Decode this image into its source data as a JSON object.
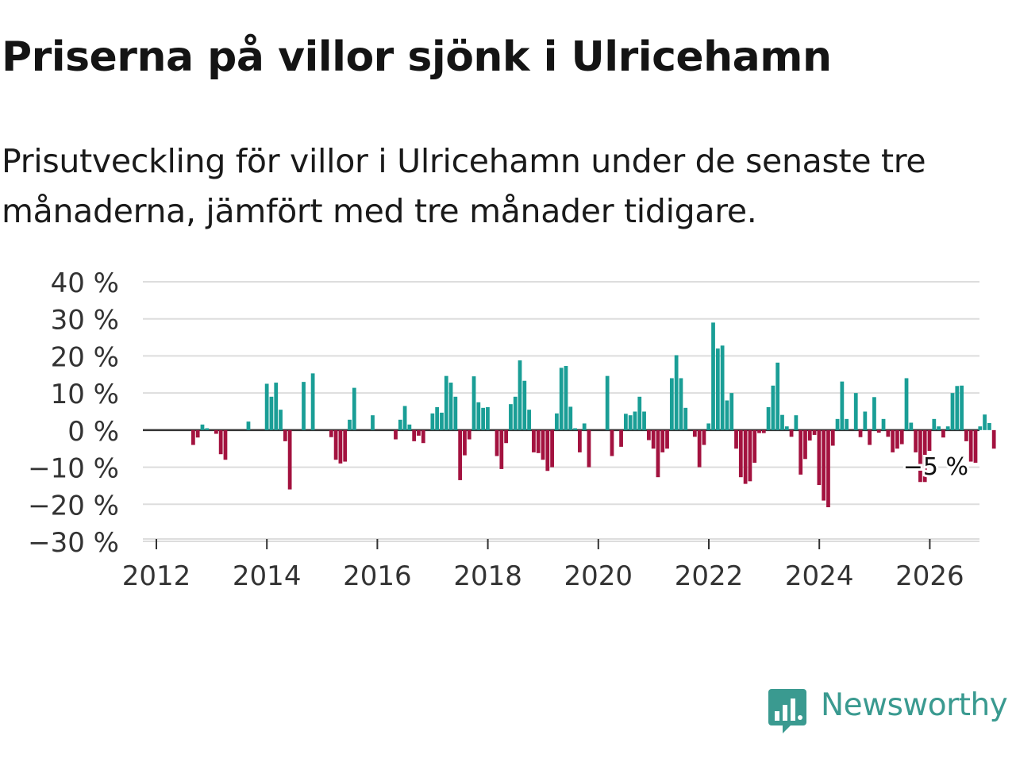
{
  "title": "Priserna på villor sjönk i Ulricehamn",
  "subtitle": "Prisutveckling för villor i Ulricehamn under de senaste tre månaderna, jämfört med tre månader tidigare.",
  "brand": "Newsworthy",
  "colors": {
    "positive": "#1a9e96",
    "negative": "#a3123f",
    "grid": "#dddddd",
    "zero": "#333333",
    "brand": "#3a9a90"
  },
  "chart_data": {
    "type": "bar",
    "title": "Priserna på villor sjönk i Ulricehamn",
    "xlabel": "",
    "ylabel": "",
    "ylim": [
      -30,
      40
    ],
    "yticks": [
      -30,
      -20,
      -10,
      0,
      10,
      20,
      30,
      40
    ],
    "ytick_labels": [
      "−30 %",
      "−20 %",
      "−10 %",
      "0 %",
      "10 %",
      "20 %",
      "30 %",
      "40 %"
    ],
    "xlim": [
      2012,
      2027
    ],
    "xticks": [
      2012,
      2014,
      2016,
      2018,
      2020,
      2022,
      2024,
      2026
    ],
    "xtick_labels": [
      "2012",
      "2014",
      "2016",
      "2018",
      "2020",
      "2022",
      "2024",
      "2026"
    ],
    "start": 2012.0,
    "step": 0.0833,
    "values": [
      0,
      0,
      0,
      0,
      0,
      0,
      0,
      0,
      -4,
      -2,
      1.5,
      0.5,
      0,
      -1,
      -6.5,
      -8,
      0,
      0,
      0,
      0,
      2.3,
      0,
      0,
      0,
      12.5,
      9,
      12.8,
      5.5,
      -3,
      -16,
      0,
      0,
      13,
      0,
      15.3,
      0,
      0,
      0,
      -1.9,
      -8,
      -9,
      -8.5,
      2.8,
      11.4,
      0,
      0,
      0,
      4,
      0,
      0,
      0,
      0,
      -2.5,
      2.8,
      6.5,
      1.5,
      -3,
      -1.5,
      -3.5,
      0,
      4.5,
      6.2,
      4.7,
      14.6,
      12.8,
      9,
      -13.5,
      -6.8,
      -2.5,
      14.5,
      7.5,
      6,
      6.2,
      0,
      -7,
      -10.5,
      -3.5,
      7,
      9,
      18.8,
      13.3,
      5.5,
      -6,
      -6.2,
      -8,
      -11,
      -10,
      4.5,
      16.8,
      17.3,
      6.3,
      0.5,
      -6,
      1.8,
      -10,
      0,
      0,
      0,
      14.6,
      -7,
      0,
      -4.5,
      4.4,
      4,
      5,
      9,
      5,
      -2.7,
      -5,
      -12.7,
      -6,
      -5,
      14,
      20.2,
      14,
      6,
      0,
      -1.8,
      -10,
      -4,
      1.8,
      29,
      22,
      22.8,
      8,
      10,
      -5,
      -12.7,
      -14.5,
      -13.8,
      -8.8,
      -0.8,
      -0.8,
      6.2,
      12,
      18.2,
      4.1,
      1,
      -1.8,
      4,
      -12,
      -7.8,
      -2.8,
      -1.3,
      -14.8,
      -19,
      -20.8,
      -4.2,
      3,
      13.1,
      3,
      0,
      10,
      -1.9,
      5,
      -4,
      8.9,
      -0.7,
      3,
      -1.8,
      -6,
      -5,
      -3.8,
      14,
      2,
      -6,
      -14,
      -14,
      -5.6,
      3,
      1,
      -2,
      1,
      10,
      11.9,
      12,
      -3,
      -8.5,
      -8.8,
      1,
      4.2,
      1.9,
      -5,
      0,
      0,
      0
    ],
    "annotation": {
      "label": "−5 %",
      "value": -5
    }
  }
}
